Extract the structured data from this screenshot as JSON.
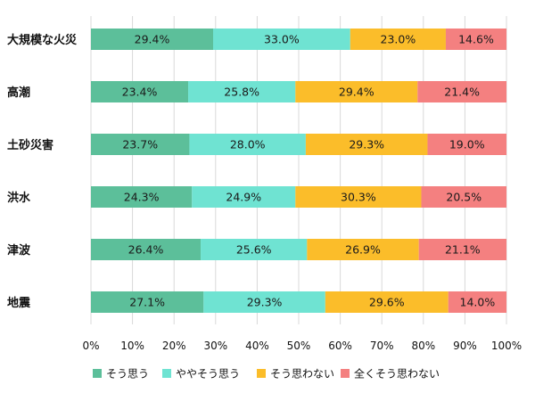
{
  "chart_data": {
    "type": "bar",
    "orientation": "horizontal",
    "stacked": "percent",
    "categories": [
      "大規模な火災",
      "高潮",
      "土砂災害",
      "洪水",
      "津波",
      "地震"
    ],
    "series": [
      {
        "name": "そう思う",
        "color": "#5cbf9a",
        "values": [
          29.4,
          23.4,
          23.7,
          24.3,
          26.4,
          27.1
        ],
        "labels": [
          "29.4%",
          "23.4%",
          "23.7%",
          "24.3%",
          "26.4%",
          "27.1%"
        ]
      },
      {
        "name": "ややそう思う",
        "color": "#6fe3d2",
        "values": [
          33.0,
          25.8,
          28.0,
          24.9,
          25.6,
          29.3
        ],
        "labels": [
          "33.0%",
          "25.8%",
          "28.0%",
          "24.9%",
          "25.6%",
          "29.3%"
        ]
      },
      {
        "name": "そう思わない",
        "color": "#fbbd2a",
        "values": [
          23.0,
          29.4,
          29.3,
          30.3,
          26.9,
          29.6
        ],
        "labels": [
          "23.0%",
          "29.4%",
          "29.3%",
          "30.3%",
          "26.9%",
          "29.6%"
        ]
      },
      {
        "name": "全くそう思わない",
        "color": "#f48080",
        "values": [
          14.6,
          21.4,
          19.0,
          20.5,
          21.1,
          14.0
        ],
        "labels": [
          "14.6%",
          "21.4%",
          "19.0%",
          "20.5%",
          "21.1%",
          "14.0%"
        ]
      }
    ],
    "xlim": [
      0,
      100
    ],
    "x_ticks": [
      "0%",
      "10%",
      "20%",
      "30%",
      "40%",
      "50%",
      "60%",
      "70%",
      "80%",
      "90%",
      "100%"
    ],
    "grid": true,
    "legend_position": "bottom"
  }
}
